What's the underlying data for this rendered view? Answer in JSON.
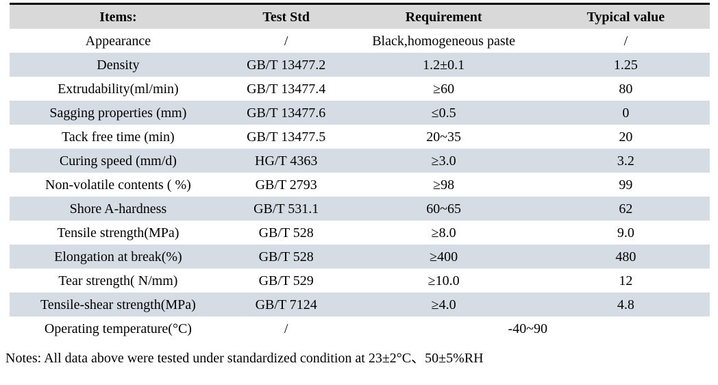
{
  "colors": {
    "header_bg": "#d9d9d9",
    "stripe_bg": "#d6dce4",
    "top_border": "#000000",
    "text": "#000000"
  },
  "table": {
    "columns": [
      "Items:",
      "Test Std",
      "Requirement",
      "Typical value"
    ],
    "rows": [
      {
        "item": "Appearance",
        "std": "/",
        "req": "Black,homogeneous paste",
        "typ": "/"
      },
      {
        "item": "Density",
        "std": "GB/T 13477.2",
        "req": "1.2±0.1",
        "typ": "1.25"
      },
      {
        "item": "Extrudability(ml/min)",
        "std": "GB/T 13477.4",
        "req": "≥60",
        "typ": "80"
      },
      {
        "item": "Sagging properties (mm)",
        "std": "GB/T 13477.6",
        "req": "≤0.5",
        "typ": "0"
      },
      {
        "item": "Tack free time (min)",
        "std": "GB/T 13477.5",
        "req": "20~35",
        "typ": "20"
      },
      {
        "item": "Curing speed (mm/d)",
        "std": "HG/T 4363",
        "req": "≥3.0",
        "typ": "3.2"
      },
      {
        "item": "Non-volatile contents ( %)",
        "std": "GB/T 2793",
        "req": "≥98",
        "typ": "99"
      },
      {
        "item": "Shore A-hardness",
        "std": "GB/T 531.1",
        "req": "60~65",
        "typ": "62"
      },
      {
        "item": "Tensile strength(MPa)",
        "std": "GB/T 528",
        "req": "≥8.0",
        "typ": "9.0"
      },
      {
        "item": "Elongation at break(%)",
        "std": "GB/T 528",
        "req": "≥400",
        "typ": "480"
      },
      {
        "item": "Tear strength( N/mm)",
        "std": "GB/T 529",
        "req": "≥10.0",
        "typ": "12"
      },
      {
        "item": "Tensile-shear strength(MPa)",
        "std": "GB/T 7124",
        "req": "≥4.0",
        "typ": "4.8"
      },
      {
        "item": "Operating temperature(°C)",
        "std": "/",
        "req": "-40~90"
      }
    ]
  },
  "notes": "Notes: All data above were tested under standardized condition at 23±2°C、50±5%RH"
}
